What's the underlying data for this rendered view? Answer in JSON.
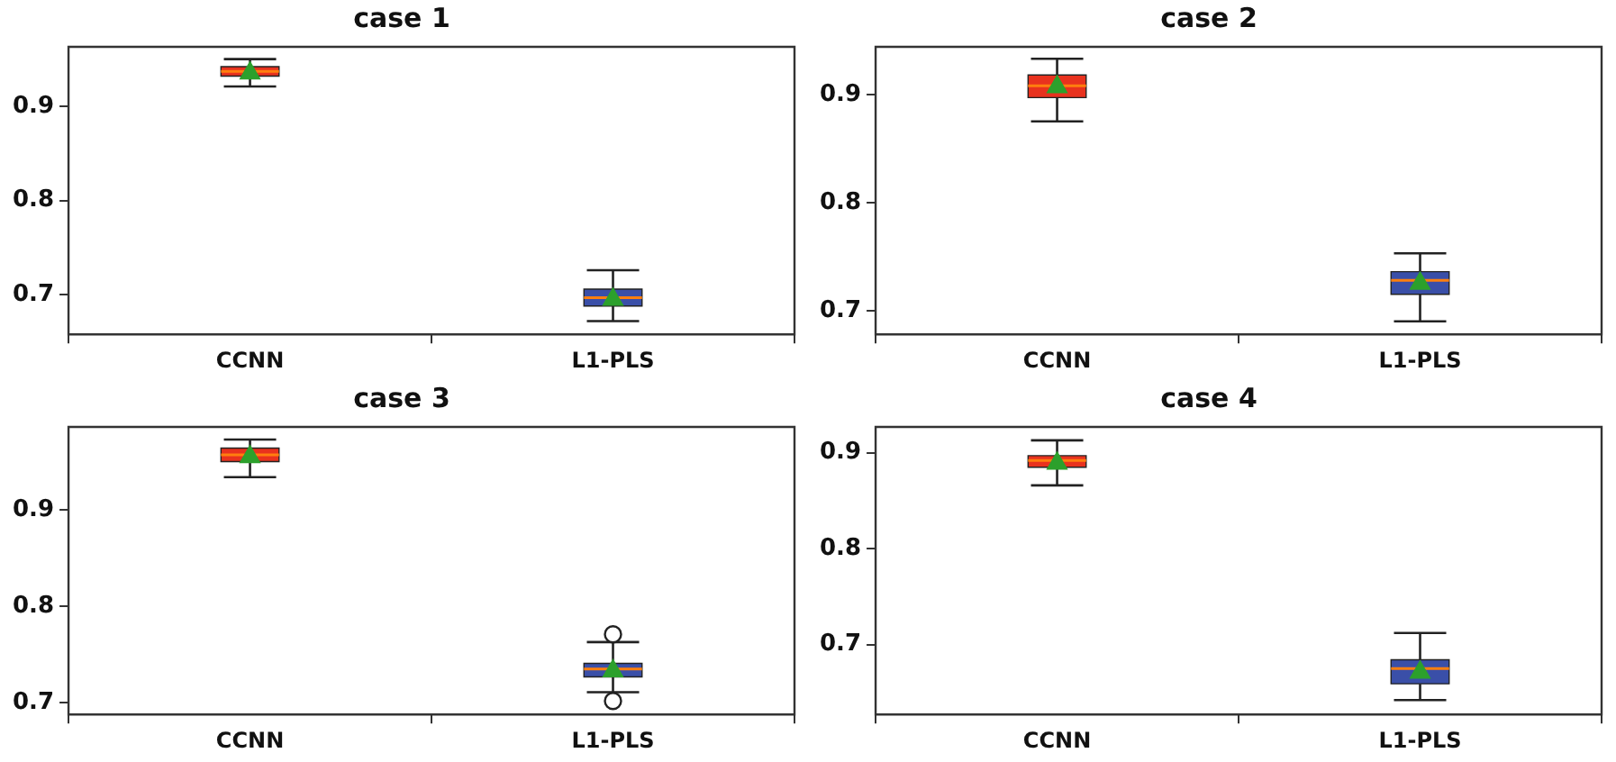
{
  "chart_data": [
    {
      "type": "box",
      "title": "case 1",
      "categories": [
        "CCNN",
        "L1-PLS"
      ],
      "colors": [
        "#e8321e",
        "#3a4fa8"
      ],
      "marker": "triangle",
      "grid": false,
      "legend": false,
      "ylim": [
        0.658,
        0.963
      ],
      "yticks": [
        0.7,
        0.8,
        0.9
      ],
      "boxes": [
        {
          "low": 0.921,
          "q1": 0.932,
          "median": 0.937,
          "q3": 0.942,
          "high": 0.95,
          "mean": 0.935
        },
        {
          "low": 0.672,
          "q1": 0.688,
          "median": 0.697,
          "q3": 0.706,
          "high": 0.726,
          "mean": 0.695
        }
      ]
    },
    {
      "type": "box",
      "title": "case 2",
      "categories": [
        "CCNN",
        "L1-PLS"
      ],
      "colors": [
        "#e8321e",
        "#3a4fa8"
      ],
      "marker": "triangle",
      "grid": false,
      "legend": false,
      "ylim": [
        0.678,
        0.944
      ],
      "yticks": [
        0.7,
        0.8,
        0.9
      ],
      "boxes": [
        {
          "low": 0.875,
          "q1": 0.897,
          "median": 0.908,
          "q3": 0.918,
          "high": 0.933,
          "mean": 0.907
        },
        {
          "low": 0.69,
          "q1": 0.715,
          "median": 0.728,
          "q3": 0.736,
          "high": 0.753,
          "mean": 0.725
        }
      ]
    },
    {
      "type": "box",
      "title": "case 3",
      "categories": [
        "CCNN",
        "L1-PLS"
      ],
      "colors": [
        "#e8321e",
        "#3a4fa8"
      ],
      "marker": "triangle",
      "grid": false,
      "legend": false,
      "ylim": [
        0.688,
        0.986
      ],
      "yticks": [
        0.7,
        0.8,
        0.9
      ],
      "boxes": [
        {
          "low": 0.934,
          "q1": 0.95,
          "median": 0.957,
          "q3": 0.964,
          "high": 0.973,
          "mean": 0.955
        },
        {
          "low": 0.711,
          "q1": 0.727,
          "median": 0.735,
          "q3": 0.741,
          "high": 0.763,
          "mean": 0.733,
          "outliers": [
            0.771,
            0.702
          ]
        }
      ]
    },
    {
      "type": "box",
      "title": "case 4",
      "categories": [
        "CCNN",
        "L1-PLS"
      ],
      "colors": [
        "#e8321e",
        "#3a4fa8"
      ],
      "marker": "triangle",
      "grid": false,
      "legend": false,
      "ylim": [
        0.627,
        0.927
      ],
      "yticks": [
        0.7,
        0.8,
        0.9
      ],
      "boxes": [
        {
          "low": 0.866,
          "q1": 0.885,
          "median": 0.892,
          "q3": 0.897,
          "high": 0.913,
          "mean": 0.889
        },
        {
          "low": 0.642,
          "q1": 0.659,
          "median": 0.675,
          "q3": 0.684,
          "high": 0.712,
          "mean": 0.671
        }
      ]
    }
  ]
}
